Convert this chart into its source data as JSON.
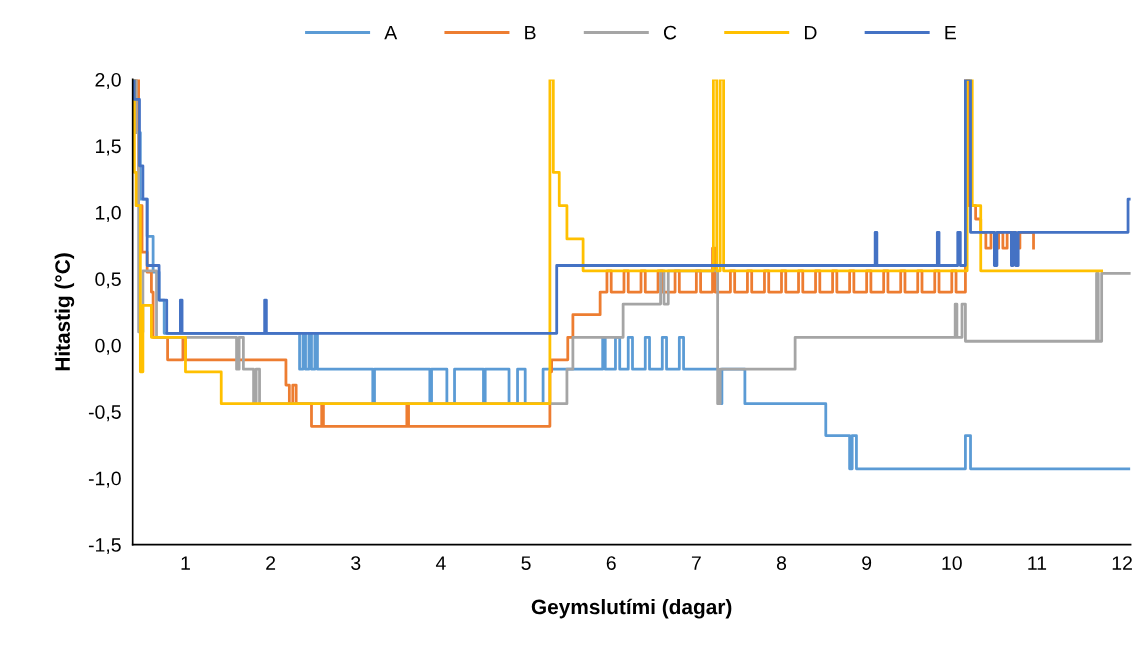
{
  "chart_data": {
    "type": "step",
    "xlabel": "Geymslutími (dagar)",
    "ylabel": "Hitastig (°C)",
    "xlim": [
      0.38,
      12.1
    ],
    "xticks": [
      1,
      2,
      3,
      4,
      5,
      6,
      7,
      8,
      9,
      10,
      11,
      12
    ],
    "ylim": [
      -1.5,
      2.0
    ],
    "yticks": [
      {
        "value": 2.0,
        "label": "2,0"
      },
      {
        "value": 1.5,
        "label": "1,5"
      },
      {
        "value": 1.0,
        "label": "1,0"
      },
      {
        "value": 0.5,
        "label": "0,5"
      },
      {
        "value": 0.0,
        "label": "0,0"
      },
      {
        "value": -0.5,
        "label": "-0,5"
      },
      {
        "value": -1.0,
        "label": "-1,0"
      },
      {
        "value": -1.5,
        "label": "-1,5"
      }
    ],
    "legend": "top",
    "line_style": "solid",
    "marker": "none",
    "series": [
      {
        "name": "A",
        "color": "#5b9bd5",
        "x": [
          0.38,
          0.42,
          0.47,
          0.55,
          0.62,
          0.69,
          0.75,
          2.34,
          2.38,
          2.41,
          2.45,
          2.48,
          2.52,
          2.55,
          3.2,
          3.22,
          3.87,
          3.89,
          4.07,
          4.16,
          4.5,
          4.52,
          4.8,
          4.9,
          4.99,
          5.2,
          5.25,
          5.9,
          5.93,
          6.05,
          6.1,
          6.2,
          6.25,
          6.4,
          6.45,
          6.6,
          6.65,
          6.8,
          6.85,
          6.9,
          7.26,
          7.3,
          7.57,
          8.52,
          8.8,
          8.83,
          8.88,
          8.96,
          10.16,
          10.22,
          12.08
        ],
        "values": [
          2.0,
          1.6,
          1.1,
          0.82,
          0.55,
          0.34,
          0.09,
          -0.18,
          0.09,
          -0.18,
          0.09,
          -0.18,
          0.09,
          -0.18,
          -0.44,
          -0.18,
          -0.44,
          -0.18,
          -0.44,
          -0.18,
          -0.44,
          -0.18,
          -0.44,
          -0.18,
          -0.44,
          -0.18,
          -0.18,
          0.06,
          -0.18,
          0.06,
          -0.18,
          0.06,
          -0.18,
          0.06,
          -0.18,
          0.06,
          -0.18,
          0.06,
          -0.18,
          -0.18,
          -0.44,
          -0.18,
          -0.44,
          -0.68,
          -0.93,
          -0.68,
          -0.93,
          -0.93,
          -0.68,
          -0.93,
          -0.93
        ]
      },
      {
        "name": "B",
        "color": "#ed7d31",
        "x": [
          0.42,
          0.45,
          0.49,
          0.55,
          0.6,
          0.62,
          0.79,
          0.97,
          1.0,
          2.18,
          2.22,
          2.26,
          2.3,
          2.4,
          2.48,
          2.6,
          2.62,
          3.6,
          3.62,
          5.28,
          5.3,
          5.32,
          5.49,
          5.55,
          5.87,
          5.95,
          6.0,
          6.15,
          6.2,
          6.35,
          6.4,
          6.55,
          6.6,
          6.75,
          6.8,
          7.0,
          7.05,
          7.19,
          7.22,
          7.4,
          7.45,
          7.6,
          7.65,
          7.8,
          7.85,
          8.0,
          8.05,
          8.2,
          8.25,
          8.4,
          8.45,
          8.6,
          8.65,
          8.8,
          8.85,
          9.0,
          9.05,
          9.2,
          9.25,
          9.4,
          9.45,
          9.6,
          9.65,
          9.8,
          9.85,
          10.0,
          10.05,
          10.16,
          10.2,
          10.28,
          10.34,
          10.4,
          10.46,
          10.5,
          10.55,
          10.6,
          10.65,
          10.75,
          10.8,
          10.96
        ],
        "values": [
          2.0,
          1.05,
          0.7,
          0.55,
          0.4,
          0.06,
          -0.11,
          0.06,
          -0.11,
          -0.3,
          -0.44,
          -0.3,
          -0.44,
          -0.44,
          -0.61,
          -0.44,
          -0.61,
          -0.44,
          -0.61,
          -0.2,
          -0.11,
          -0.11,
          0.06,
          0.23,
          0.4,
          0.56,
          0.4,
          0.56,
          0.4,
          0.56,
          0.4,
          0.56,
          0.4,
          0.56,
          0.4,
          0.56,
          0.4,
          0.73,
          0.4,
          0.56,
          0.4,
          0.56,
          0.4,
          0.56,
          0.4,
          0.56,
          0.4,
          0.56,
          0.4,
          0.56,
          0.4,
          0.56,
          0.4,
          0.56,
          0.4,
          0.56,
          0.4,
          0.56,
          0.4,
          0.56,
          0.4,
          0.56,
          0.4,
          0.56,
          0.4,
          0.56,
          0.4,
          2.0,
          1.05,
          0.95,
          0.85,
          0.73,
          0.85,
          0.73,
          0.85,
          0.73,
          0.85,
          0.73,
          0.85,
          0.73
        ]
      },
      {
        "name": "C",
        "color": "#a5a5a5",
        "x": [
          0.38,
          0.42,
          0.45,
          0.5,
          0.66,
          1.6,
          1.63,
          1.68,
          1.72,
          1.8,
          1.83,
          1.87,
          1.9,
          5.48,
          5.55,
          6.14,
          6.58,
          6.62,
          6.67,
          6.7,
          7.25,
          7.28,
          8.16,
          8.2,
          10.04,
          10.06,
          10.12,
          10.16,
          11.7,
          11.72,
          11.76,
          11.82,
          12.1
        ],
        "values": [
          2.0,
          1.6,
          0.1,
          0.56,
          0.06,
          -0.18,
          0.06,
          -0.18,
          -0.18,
          -0.44,
          -0.18,
          -0.44,
          -0.44,
          -0.18,
          0.06,
          0.31,
          0.56,
          0.31,
          0.56,
          0.56,
          -0.44,
          -0.18,
          0.06,
          0.06,
          0.31,
          0.06,
          0.31,
          0.03,
          0.54,
          0.03,
          0.54,
          0.54,
          0.54
        ]
      },
      {
        "name": "D",
        "color": "#ffc000",
        "x": [
          0.38,
          0.4,
          0.42,
          0.47,
          0.5,
          0.6,
          1.0,
          1.42,
          5.28,
          5.32,
          5.39,
          5.48,
          5.67,
          7.2,
          7.24,
          7.28,
          7.32,
          7.36,
          10.18,
          10.24,
          10.34,
          11.76
        ],
        "values": [
          2.0,
          1.3,
          1.05,
          -0.2,
          0.3,
          0.06,
          -0.2,
          -0.44,
          2.0,
          1.3,
          1.05,
          0.8,
          0.56,
          2.0,
          0.56,
          2.0,
          0.56,
          0.56,
          2.0,
          1.05,
          0.56,
          0.56
        ]
      },
      {
        "name": "E",
        "color": "#4472c4",
        "x": [
          0.38,
          0.4,
          0.46,
          0.5,
          0.55,
          0.69,
          0.78,
          0.94,
          0.96,
          1.93,
          1.95,
          5.36,
          9.1,
          9.12,
          9.83,
          9.85,
          10.07,
          10.1,
          10.16,
          10.22,
          10.5,
          10.53,
          10.7,
          10.72,
          10.75,
          10.78,
          12.07,
          12.09
        ],
        "values": [
          2.0,
          1.85,
          1.35,
          1.1,
          0.6,
          0.34,
          0.09,
          0.34,
          0.09,
          0.34,
          0.09,
          0.6,
          0.85,
          0.6,
          0.85,
          0.6,
          0.85,
          0.6,
          2.0,
          0.85,
          0.6,
          0.85,
          0.6,
          0.85,
          0.6,
          0.85,
          1.1,
          1.1
        ]
      }
    ]
  }
}
